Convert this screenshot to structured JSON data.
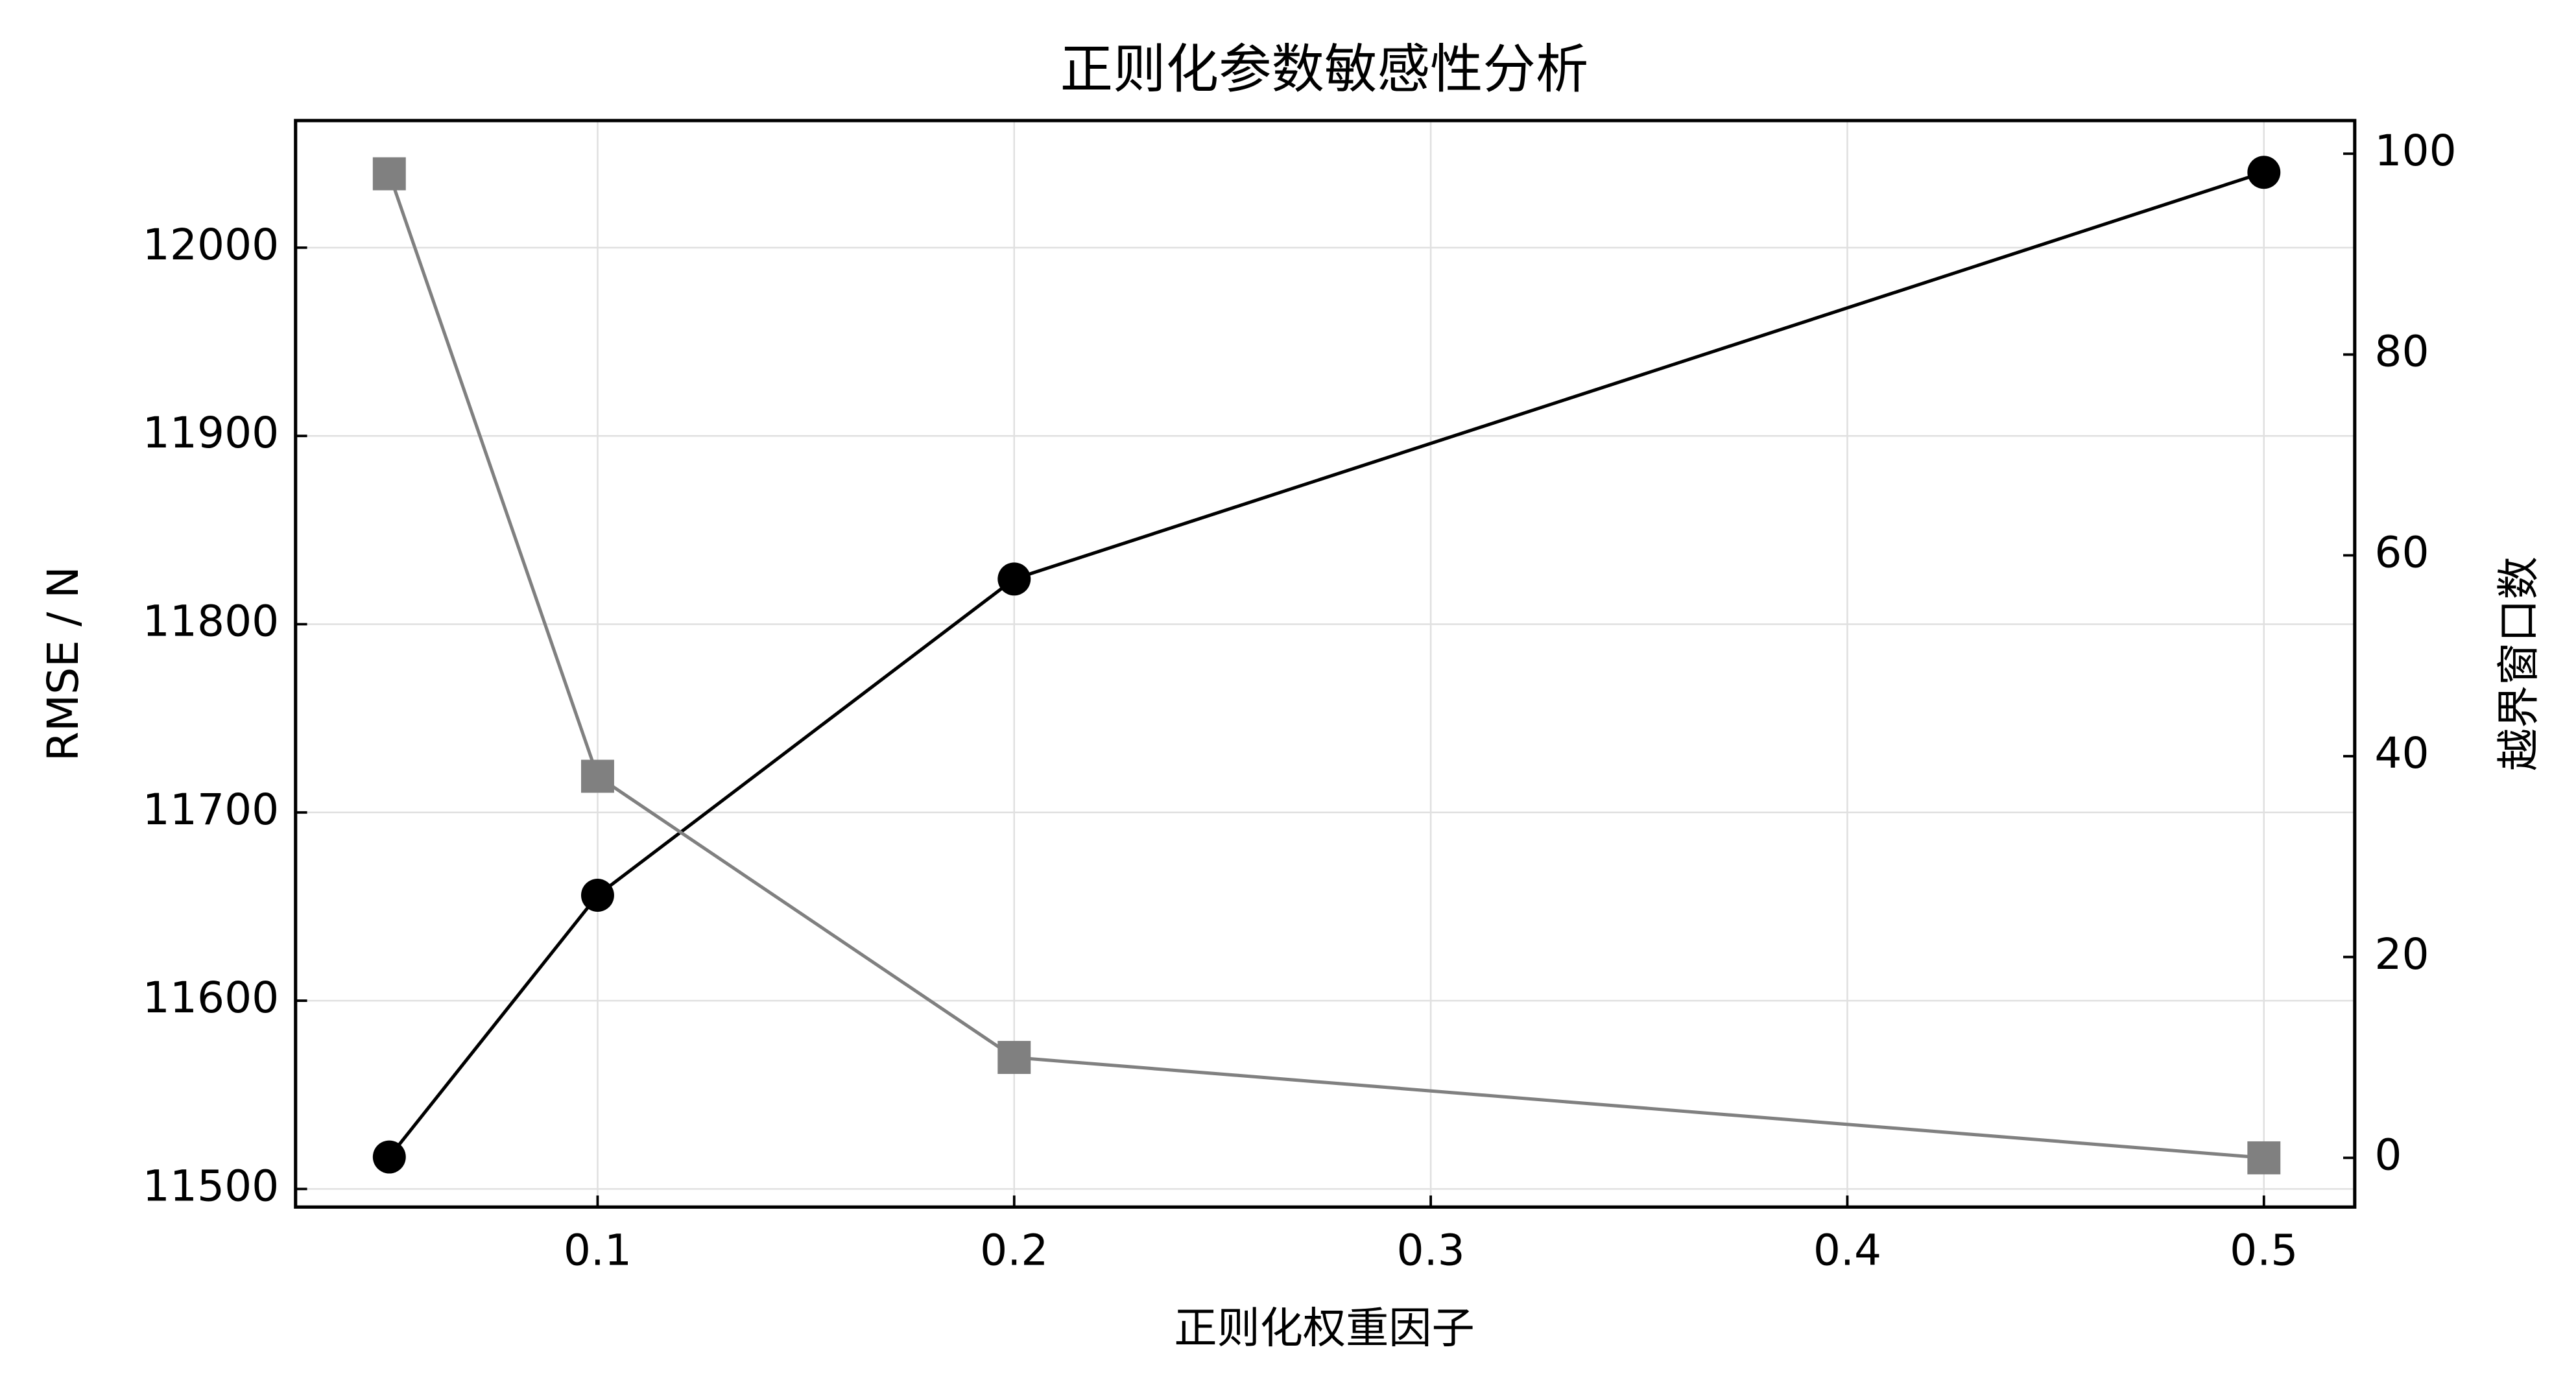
{
  "chart_data": {
    "type": "line",
    "title": "正则化参数敏感性分析",
    "x_label": "正则化权重因子",
    "y_label": "RMSE / N",
    "y2_label": "越界窗口数",
    "x": [
      0.05,
      0.1,
      0.2,
      0.5
    ],
    "series": [
      {
        "color": "#000000",
        "marker": "circle",
        "values": [
          11517,
          11656,
          11824,
          12040
        ]
      },
      {
        "color": "#808080",
        "marker": "square",
        "axis": "y2",
        "values": [
          98,
          38,
          10,
          0
        ]
      }
    ],
    "xlim": [
      0.0275,
      0.5218
    ],
    "xticks": [
      0.1,
      0.2,
      0.3,
      0.4,
      0.5
    ],
    "ylim": [
      11490.4,
      12067.5
    ],
    "yticks": [
      11500,
      11600,
      11700,
      11800,
      11900,
      12000
    ],
    "y2lim": [
      -4.9,
      103.3
    ],
    "y2ticks": [
      0,
      20,
      40,
      60,
      80,
      100
    ],
    "grid": true
  }
}
